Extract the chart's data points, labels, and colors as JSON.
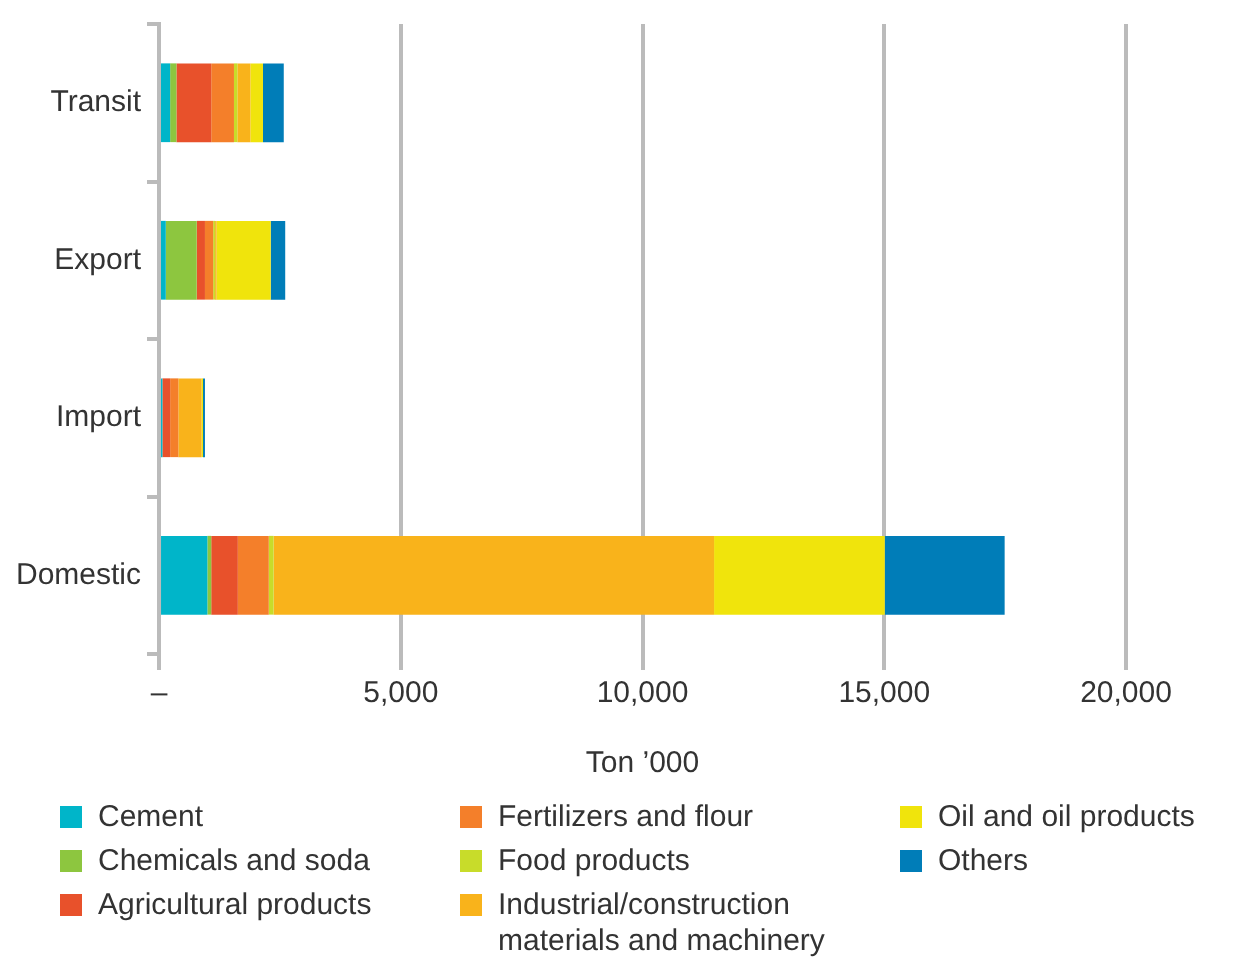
{
  "chart_data": {
    "type": "bar",
    "orientation": "horizontal",
    "stacked": true,
    "xlabel": "Ton ’000",
    "categories": [
      "Transit",
      "Export",
      "Import",
      "Domestic"
    ],
    "xlim": [
      0,
      20000
    ],
    "xticks": [
      {
        "value": 0,
        "label": "–"
      },
      {
        "value": 5000,
        "label": "5,000"
      },
      {
        "value": 10000,
        "label": "10,000"
      },
      {
        "value": 15000,
        "label": "15,000"
      },
      {
        "value": 20000,
        "label": "20,000"
      }
    ],
    "grid": "x",
    "legend": "bottom",
    "series": [
      {
        "name": "Cement",
        "color": "#00b5c9",
        "values": [
          230,
          140,
          70,
          1000
        ]
      },
      {
        "name": "Chemicals and soda",
        "color": "#8dc63f",
        "values": [
          130,
          640,
          0,
          80
        ]
      },
      {
        "name": "Agricultural products",
        "color": "#e8512b",
        "values": [
          720,
          170,
          160,
          550
        ]
      },
      {
        "name": "Fertilizers and flour",
        "color": "#f47f2a",
        "values": [
          470,
          170,
          170,
          640
        ]
      },
      {
        "name": "Food products",
        "color": "#c8dc2a",
        "values": [
          70,
          40,
          0,
          100
        ]
      },
      {
        "name": "Industrial/construction materials and machinery",
        "color": "#f9b31b",
        "values": [
          270,
          30,
          480,
          9110
        ]
      },
      {
        "name": "Oil and oil products",
        "color": "#f0e40c",
        "values": [
          260,
          1120,
          30,
          3530
        ]
      },
      {
        "name": "Others",
        "color": "#007db8",
        "values": [
          430,
          300,
          40,
          2480
        ]
      }
    ]
  }
}
